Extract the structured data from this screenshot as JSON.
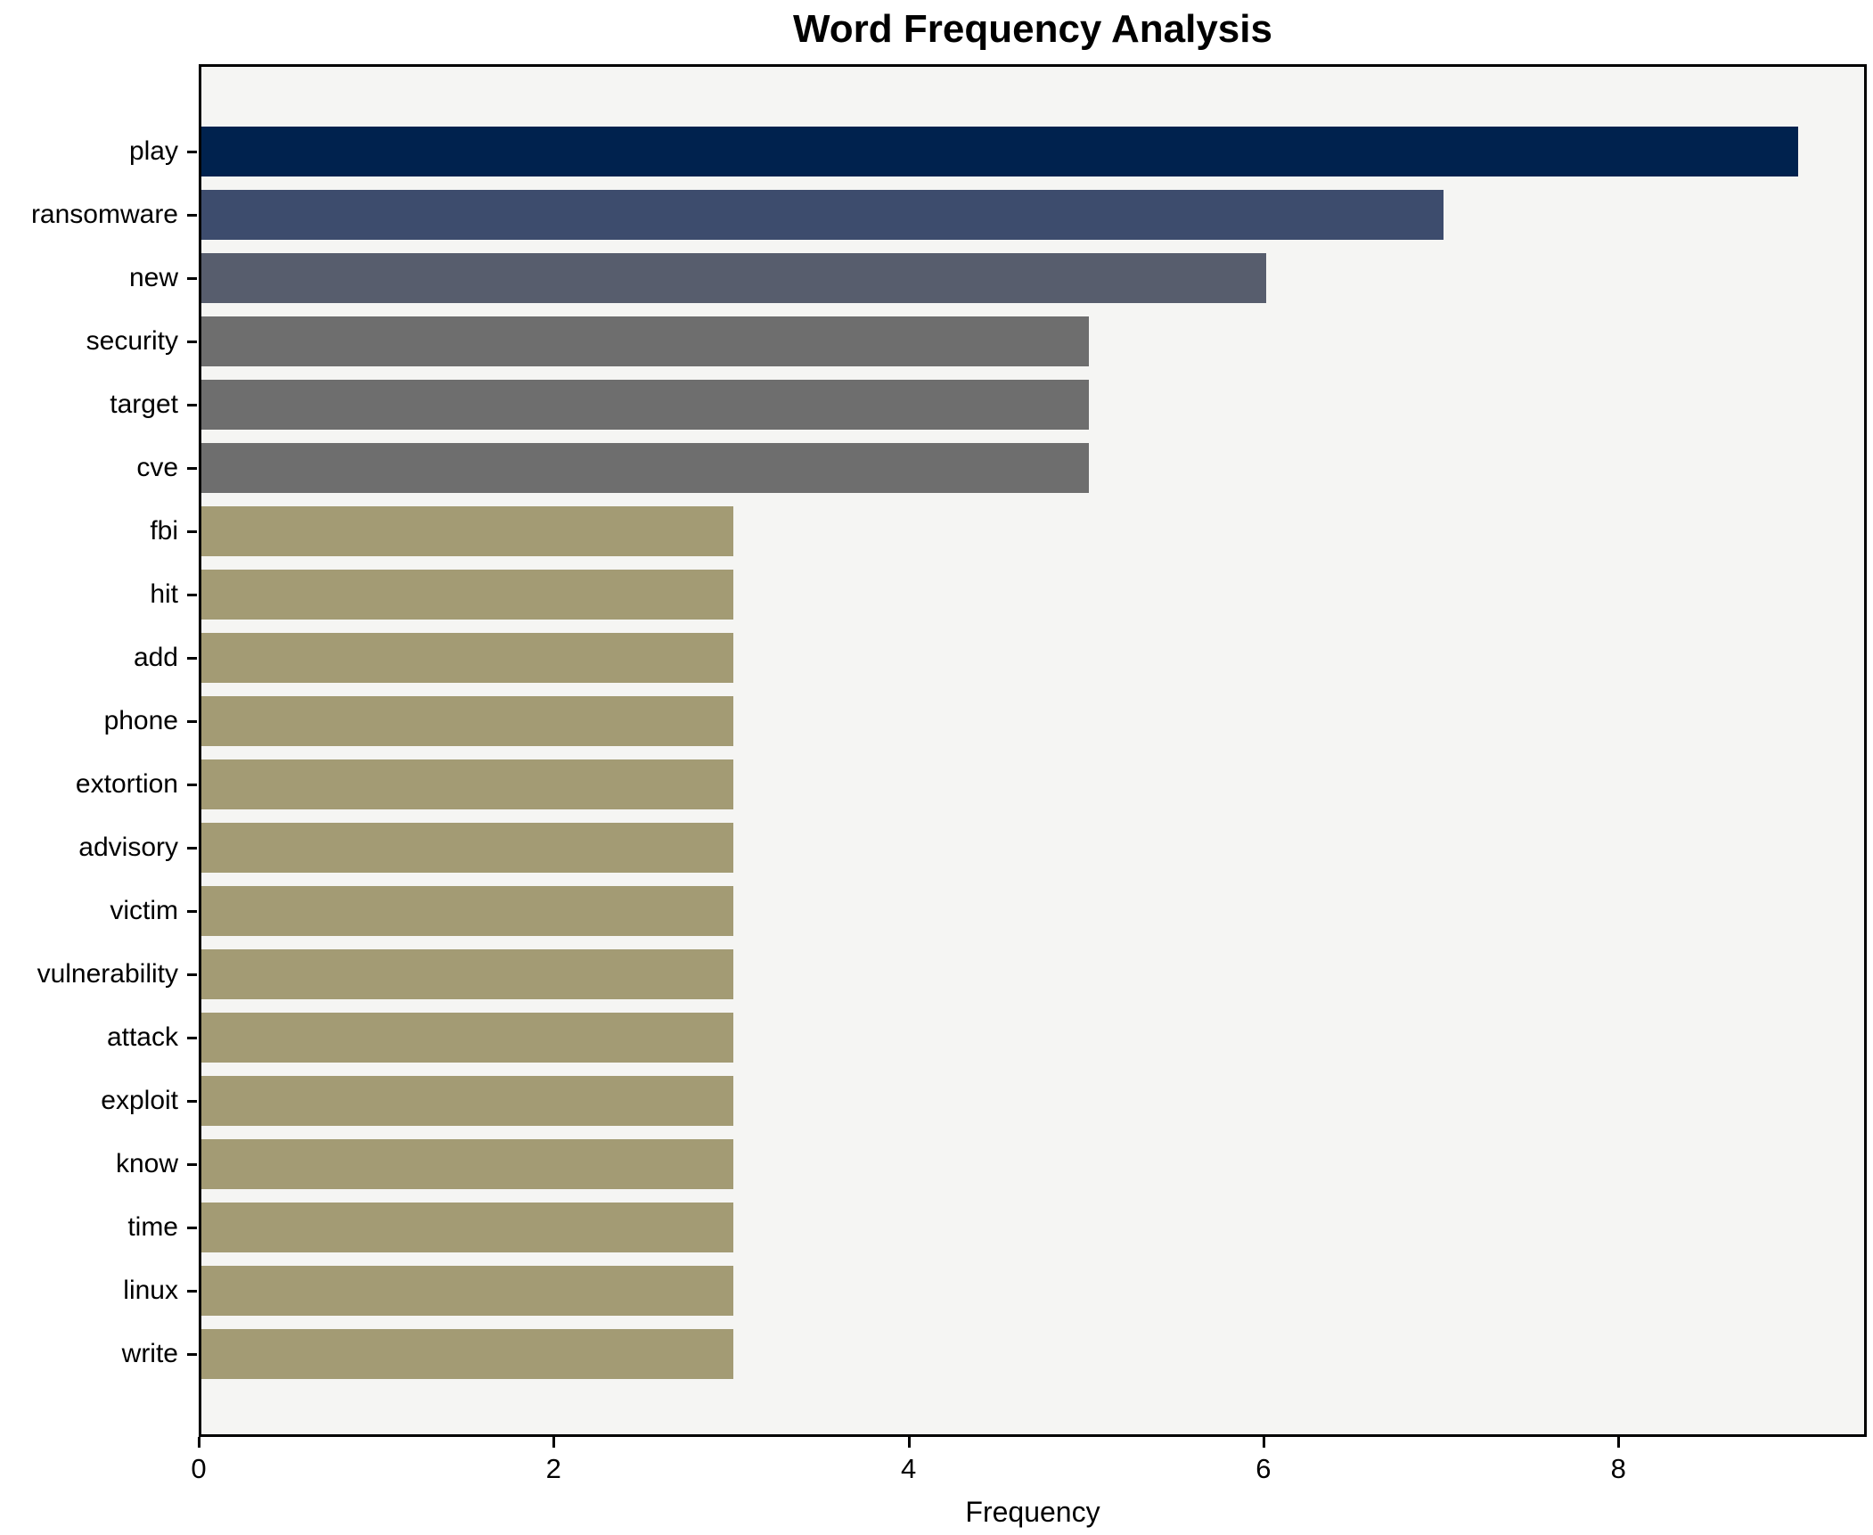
{
  "chart_data": {
    "type": "bar",
    "orientation": "horizontal",
    "title": "Word Frequency Analysis",
    "xlabel": "Frequency",
    "ylabel": "",
    "categories": [
      "play",
      "ransomware",
      "new",
      "security",
      "target",
      "cve",
      "fbi",
      "hit",
      "add",
      "phone",
      "extortion",
      "advisory",
      "victim",
      "vulnerability",
      "attack",
      "exploit",
      "know",
      "time",
      "linux",
      "write"
    ],
    "values": [
      9,
      7,
      6,
      5,
      5,
      5,
      3,
      3,
      3,
      3,
      3,
      3,
      3,
      3,
      3,
      3,
      3,
      3,
      3,
      3
    ],
    "bar_colors": [
      "#00224e",
      "#3d4c6d",
      "#575d6d",
      "#6e6e6e",
      "#6e6e6e",
      "#6e6e6e",
      "#a39b74",
      "#a39b74",
      "#a39b74",
      "#a39b74",
      "#a39b74",
      "#a39b74",
      "#a39b74",
      "#a39b74",
      "#a39b74",
      "#a39b74",
      "#a39b74",
      "#a39b74",
      "#a39b74",
      "#a39b74"
    ],
    "xticks": [
      0,
      2,
      4,
      6,
      8
    ],
    "xlim": [
      0,
      9.4
    ],
    "grid": false,
    "legend_position": "none",
    "plot_bg": "#f5f5f3",
    "figure_bg": "#ffffff",
    "spine_color": "#000000",
    "text_color": "#000000"
  }
}
